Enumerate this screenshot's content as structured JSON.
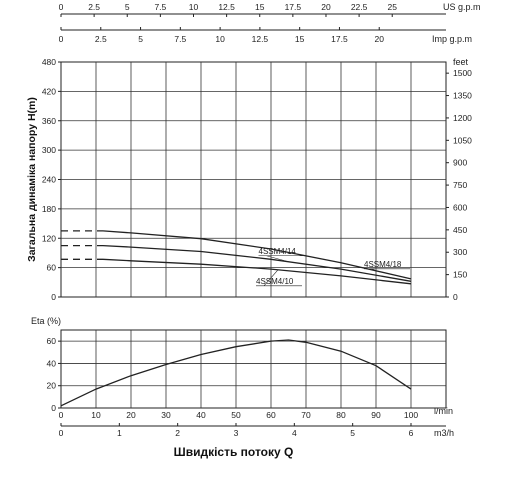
{
  "chart_data": [
    {
      "type": "line",
      "ylabel": "Загальна динаміка напору H(m)",
      "xlabel": "Швидкість потоку Q",
      "y_left": {
        "ticks": [
          0,
          60,
          120,
          180,
          240,
          300,
          360,
          420,
          480
        ],
        "range": [
          0,
          480
        ]
      },
      "y_right": {
        "unit": "feet",
        "ticks": [
          0,
          150,
          300,
          450,
          600,
          750,
          900,
          1050,
          1200,
          1350,
          1500
        ]
      },
      "top_axis_us": {
        "unit": "US g.p.m",
        "ticks": [
          0,
          2.5,
          5,
          7.5,
          10,
          12.5,
          15,
          17.5,
          20,
          22.5,
          25
        ]
      },
      "top_axis_imp": {
        "unit": "Imp g.p.m",
        "ticks": [
          0,
          2.5,
          5,
          7.5,
          10,
          12.5,
          15,
          17.5,
          20
        ]
      },
      "x_range_lmin": [
        0,
        110
      ],
      "grid": true,
      "series": [
        {
          "name": "4SSM4/18",
          "x": [
            0,
            12,
            20,
            40,
            60,
            80,
            100
          ],
          "y": [
            135,
            135,
            131,
            119,
            98,
            70,
            37
          ],
          "dashed_until": 12,
          "label_on_curve": "4SSM4/18"
        },
        {
          "name": "4SSM4/14",
          "x": [
            0,
            12,
            20,
            40,
            60,
            80,
            100
          ],
          "y": [
            105,
            105,
            102,
            93,
            77,
            57,
            32
          ],
          "dashed_until": 12,
          "label_on_curve": "4SSM4/14"
        },
        {
          "name": "4SSM4/10",
          "x": [
            0,
            12,
            20,
            40,
            60,
            80,
            100
          ],
          "y": [
            77,
            77,
            74,
            67,
            57,
            43,
            27
          ],
          "dashed_until": 12,
          "label_on_curve": "4SSM4/10"
        }
      ]
    },
    {
      "type": "line",
      "ylabel": "Eta (%)",
      "y": {
        "ticks": [
          0,
          20,
          40,
          60
        ],
        "range": [
          0,
          70
        ]
      },
      "x_lmin": {
        "unit": "l/min",
        "ticks": [
          0,
          10,
          20,
          30,
          40,
          50,
          60,
          70,
          80,
          90,
          100
        ]
      },
      "x_m3h": {
        "unit": "m3/h",
        "ticks": [
          0,
          1,
          2,
          3,
          4,
          5,
          6
        ]
      },
      "x_range_lmin": [
        0,
        110
      ],
      "grid": true,
      "series": [
        {
          "name": "Eta",
          "x": [
            0,
            10,
            20,
            30,
            40,
            50,
            60,
            65,
            70,
            80,
            90,
            100
          ],
          "y": [
            2,
            17,
            29,
            39,
            48,
            55,
            60,
            61,
            59,
            51,
            38,
            17
          ]
        }
      ]
    }
  ]
}
